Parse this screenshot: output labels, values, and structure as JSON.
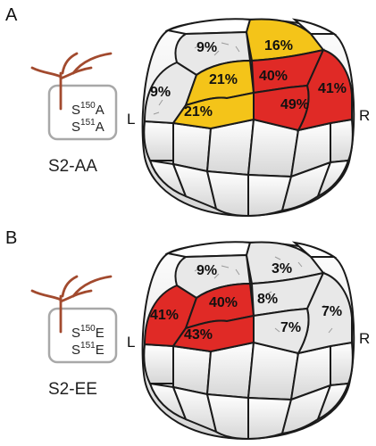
{
  "colors": {
    "high": "#e02a26",
    "mid": "#f4c419",
    "low": "#e8e8e8",
    "unlabeled": "#ffffff",
    "outline": "#1a1a1a",
    "neuron": "#a24a2e",
    "inset_box": "#a8a8a8"
  },
  "panels": [
    {
      "letter": "A",
      "condition_label": "S2-AA",
      "residue_1": {
        "letter": "S",
        "number": "150",
        "sub": "A"
      },
      "residue_2": {
        "letter": "S",
        "number": "151",
        "sub": "A"
      },
      "side_left": "L",
      "side_right": "R",
      "cells": [
        {
          "id": "left-top",
          "value": "9%",
          "color": "low"
        },
        {
          "id": "left-outer",
          "value": "9%",
          "color": "low"
        },
        {
          "id": "left-inner-upper",
          "value": "21%",
          "color": "mid"
        },
        {
          "id": "left-inner-lower",
          "value": "21%",
          "color": "mid"
        },
        {
          "id": "right-top",
          "value": "16%",
          "color": "mid"
        },
        {
          "id": "right-inner-upper",
          "value": "40%",
          "color": "high"
        },
        {
          "id": "right-outer",
          "value": "41%",
          "color": "high"
        },
        {
          "id": "right-inner-lower",
          "value": "49%",
          "color": "high"
        }
      ]
    },
    {
      "letter": "B",
      "condition_label": "S2-EE",
      "residue_1": {
        "letter": "S",
        "number": "150",
        "sub": "E"
      },
      "residue_2": {
        "letter": "S",
        "number": "151",
        "sub": "E"
      },
      "side_left": "L",
      "side_right": "R",
      "cells": [
        {
          "id": "left-top",
          "value": "9%",
          "color": "low"
        },
        {
          "id": "left-outer",
          "value": "41%",
          "color": "high"
        },
        {
          "id": "left-inner-upper",
          "value": "40%",
          "color": "high"
        },
        {
          "id": "left-inner-lower",
          "value": "43%",
          "color": "high"
        },
        {
          "id": "right-top",
          "value": "3%",
          "color": "low"
        },
        {
          "id": "right-inner-upper",
          "value": "8%",
          "color": "low"
        },
        {
          "id": "right-outer",
          "value": "7%",
          "color": "low"
        },
        {
          "id": "right-inner-lower",
          "value": "7%",
          "color": "low"
        }
      ]
    }
  ]
}
